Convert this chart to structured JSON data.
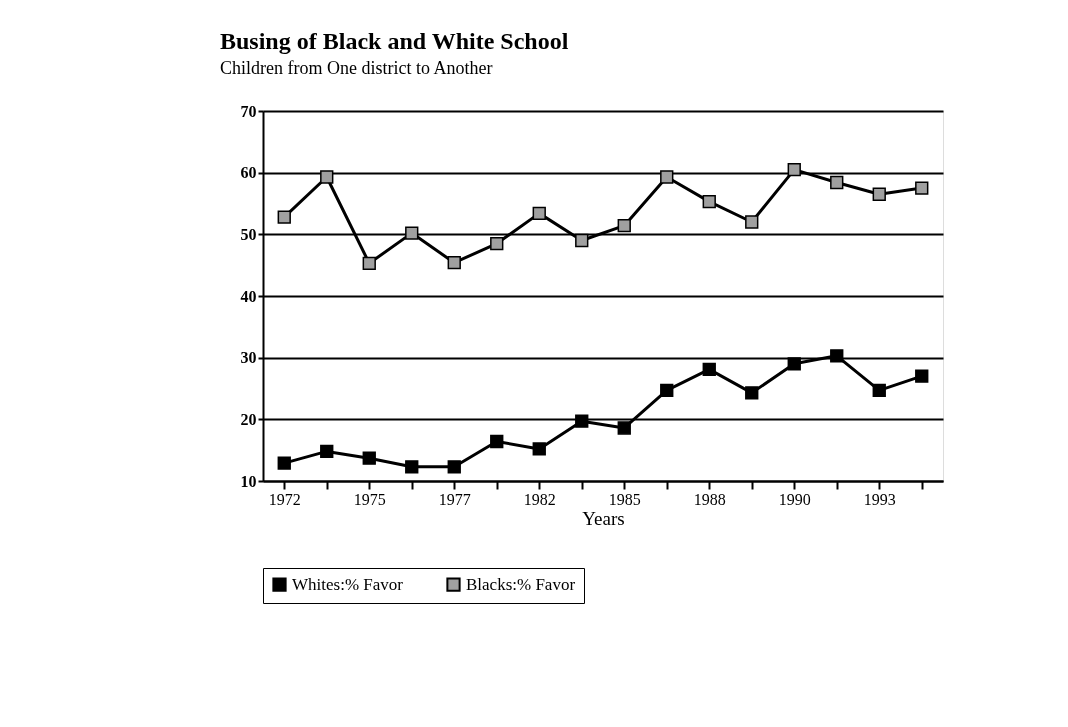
{
  "chart_data": {
    "type": "line",
    "title": "Busing of Black and White School",
    "subtitle": "Children from One district to Another",
    "xlabel": "Years",
    "categories": [
      "1972",
      null,
      "1975",
      null,
      "1977",
      null,
      "1982",
      null,
      "1985",
      null,
      "1988",
      null,
      "1990",
      null,
      "1993",
      null
    ],
    "series": [
      {
        "name": "Whites:% Favor",
        "color": "#000000",
        "values": [
          12.9,
          14.8,
          13.7,
          12.3,
          12.3,
          16.4,
          15.2,
          19.7,
          18.6,
          24.7,
          28.1,
          24.3,
          29.0,
          30.3,
          24.7,
          27.0
        ]
      },
      {
        "name": "Blacks:% Favor",
        "color": "#a0a0a0",
        "values": [
          52.8,
          59.3,
          45.3,
          50.2,
          45.4,
          48.5,
          53.4,
          49.0,
          51.4,
          59.3,
          55.3,
          52.0,
          60.5,
          58.4,
          56.5,
          57.5
        ]
      }
    ],
    "ylim": [
      10,
      70
    ],
    "yticks": [
      10,
      20,
      30,
      40,
      50,
      60,
      70
    ],
    "grid": "y",
    "legend": "bottom",
    "marker": "square",
    "line_style": "solid"
  }
}
